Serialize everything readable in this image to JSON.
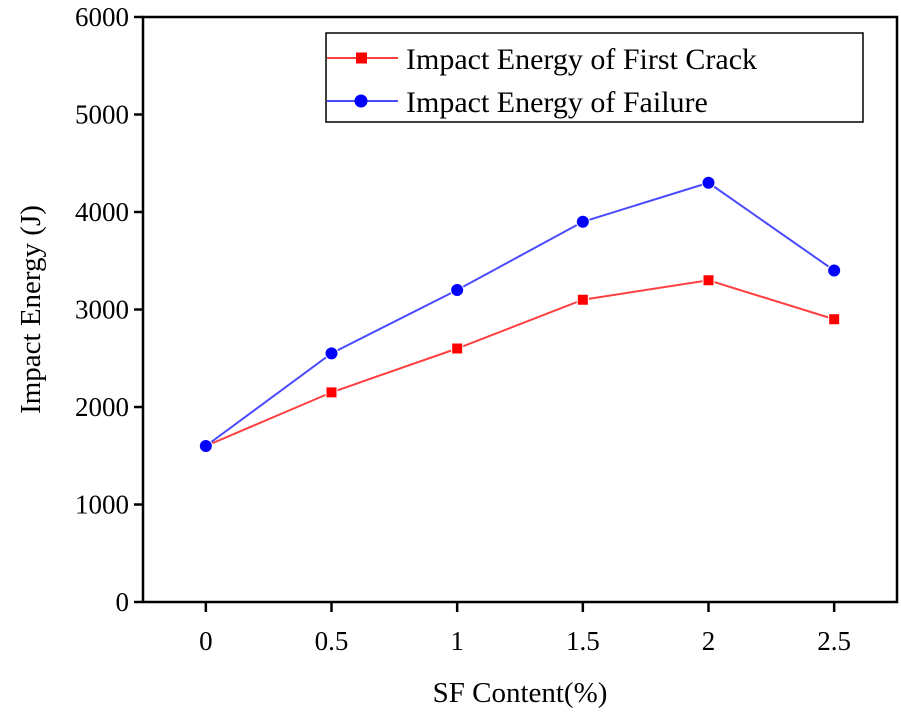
{
  "chart_data": {
    "type": "line",
    "title": "",
    "xlabel": "SF Content(%)",
    "ylabel": "Impact Energy (J)",
    "x": [
      0,
      0.5,
      1,
      1.5,
      2,
      2.5
    ],
    "x_tick_labels": [
      "0",
      "0.5",
      "1",
      "1.5",
      "2",
      "2.5"
    ],
    "xlim": [
      -0.25,
      2.75
    ],
    "ylim": [
      0,
      6000
    ],
    "y_ticks": [
      0,
      1000,
      2000,
      3000,
      4000,
      5000,
      6000
    ],
    "y_tick_labels": [
      "0",
      "1000",
      "2000",
      "3000",
      "4000",
      "5000",
      "6000"
    ],
    "grid": false,
    "legend_position": "top-right",
    "series": [
      {
        "name": "Impact Energy of First Crack",
        "color": "#ff0000",
        "line_color": "#ff4040",
        "marker": "square",
        "values": [
          1600,
          2150,
          2600,
          3100,
          3300,
          2900
        ]
      },
      {
        "name": "Impact Energy of Failure",
        "color": "#0000ff",
        "line_color": "#4a4aff",
        "marker": "circle",
        "values": [
          1600,
          2550,
          3200,
          3900,
          4300,
          3400
        ]
      }
    ]
  }
}
